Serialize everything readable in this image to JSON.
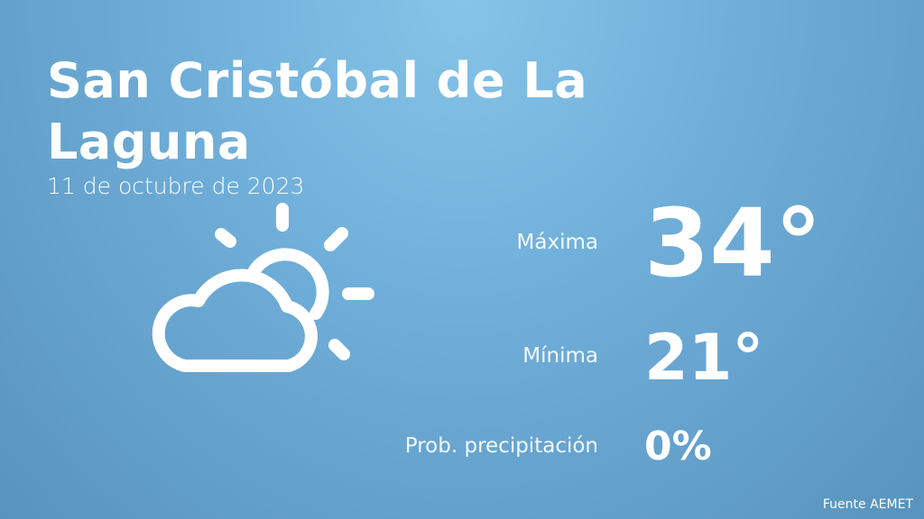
{
  "header": {
    "title": "San Cristóbal de La Laguna",
    "date": "11 de octubre de 2023"
  },
  "forecast": [
    {
      "label": "Máxima",
      "value": "34°"
    },
    {
      "label": "Mínima",
      "value": "21°"
    },
    {
      "label": "Prob. precipitación",
      "value": "0%"
    }
  ],
  "footer": {
    "source": "Fuente AEMET"
  }
}
